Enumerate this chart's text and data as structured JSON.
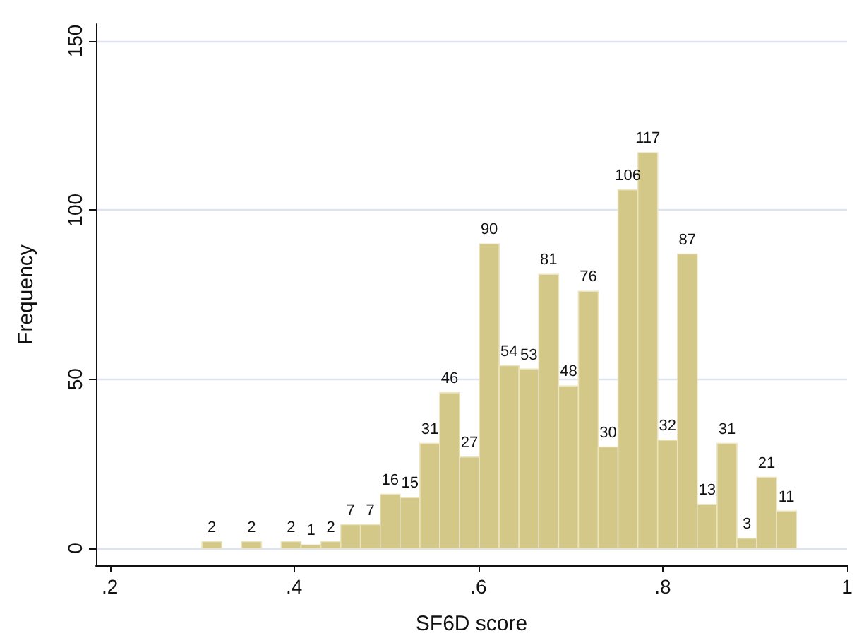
{
  "chart_data": {
    "type": "histogram",
    "xlabel": "SF6D score",
    "ylabel": "Frequency",
    "bins": [
      0.3,
      0.3215,
      0.343,
      0.3645,
      0.386,
      0.4075,
      0.429,
      0.4505,
      0.472,
      0.4935,
      0.515,
      0.5365,
      0.558,
      0.5795,
      0.601,
      0.6225,
      0.644,
      0.6655,
      0.687,
      0.7085,
      0.73,
      0.7515,
      0.773,
      0.7945,
      0.816,
      0.8375,
      0.859,
      0.8805,
      0.902,
      0.9235,
      0.945
    ],
    "values": [
      2,
      0,
      2,
      0,
      2,
      1,
      2,
      7,
      7,
      16,
      15,
      31,
      46,
      27,
      90,
      54,
      53,
      81,
      48,
      76,
      30,
      106,
      117,
      32,
      87,
      13,
      31,
      3,
      21,
      11
    ],
    "value_labels": [
      "2",
      null,
      "2",
      null,
      "2",
      "1",
      "2",
      "7",
      "7",
      "16",
      "15",
      "31",
      "46",
      "27",
      "90",
      "54",
      "53",
      "81",
      "48",
      "76",
      "30",
      "106",
      "117",
      "32",
      "87",
      "13",
      "31",
      "3",
      "21",
      "11"
    ],
    "color": "#d3c887",
    "xlim": [
      0.185,
      1.0
    ],
    "xticks": [
      {
        "value": 0.2,
        "label": ".2"
      },
      {
        "value": 0.4,
        "label": ".4"
      },
      {
        "value": 0.6,
        "label": ".6"
      },
      {
        "value": 0.8,
        "label": ".8"
      },
      {
        "value": 1,
        "label": "1"
      }
    ],
    "ylim": [
      -5,
      155
    ],
    "yticks": [
      0,
      50,
      100,
      150
    ],
    "grid": "y"
  }
}
